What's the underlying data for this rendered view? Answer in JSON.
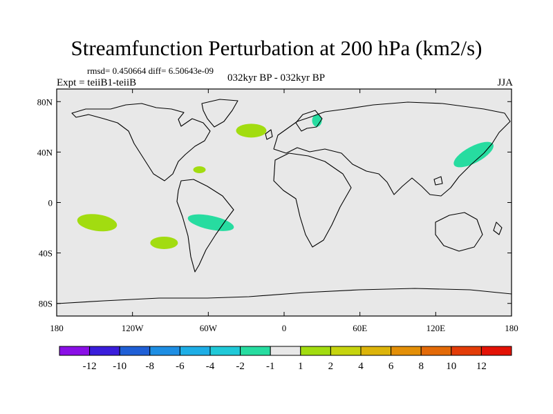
{
  "title": "Streamfunction Perturbation at 200 hPa (km2/s)",
  "stats": "rmsd= 0.450664  diff= 6.50643e-09",
  "experiment": "Expt = teiiB1-teiiB",
  "period": "032kyr BP - 032kyr BP",
  "season": "JJA",
  "map": {
    "lon_range": [
      -180,
      180
    ],
    "lat_range": [
      -90,
      90
    ],
    "lon_ticks": [
      {
        "value": -180,
        "label": "180"
      },
      {
        "value": -120,
        "label": "120W"
      },
      {
        "value": -60,
        "label": "60W"
      },
      {
        "value": 0,
        "label": "0"
      },
      {
        "value": 60,
        "label": "60E"
      },
      {
        "value": 120,
        "label": "120E"
      },
      {
        "value": 180,
        "label": "180"
      }
    ],
    "lat_ticks": [
      {
        "value": 80,
        "label": "80N"
      },
      {
        "value": 40,
        "label": "40N"
      },
      {
        "value": 0,
        "label": "0"
      },
      {
        "value": -40,
        "label": "40S"
      },
      {
        "value": -80,
        "label": "80S"
      }
    ],
    "background_color": "#e8e8e8",
    "coastline_color": "#000000"
  },
  "colorbar": {
    "colors": [
      "#8a0fe6",
      "#3a1ddb",
      "#1f5fd6",
      "#1e8ee3",
      "#1eaee6",
      "#20c9d8",
      "#27dca0",
      "#e8e8e8",
      "#a2dc10",
      "#c6d40e",
      "#dcb40a",
      "#e38f07",
      "#e36a08",
      "#e33c08",
      "#e31206"
    ],
    "labels": [
      "-12",
      "-10",
      "-8",
      "-6",
      "-4",
      "-2",
      "-1",
      "1",
      "2",
      "4",
      "6",
      "8",
      "10",
      "12"
    ]
  },
  "chart_data": {
    "type": "heatmap",
    "title": "Streamfunction Perturbation at 200 hPa (km2/s)",
    "xlim": [
      -180,
      180
    ],
    "ylim": [
      -90,
      90
    ],
    "anomaly_regions": [
      {
        "lon": -26,
        "lat": 57,
        "range": "1 to 2",
        "color": "#a2dc10"
      },
      {
        "lon": 26,
        "lat": 65,
        "range": "-2 to -1",
        "color": "#27dca0"
      },
      {
        "lon": -67,
        "lat": 26,
        "range": "1 to 2",
        "color": "#a2dc10"
      },
      {
        "lon": 150,
        "lat": 38,
        "range": "-2 to -1",
        "color": "#27dca0"
      },
      {
        "lon": -148,
        "lat": -16,
        "range": "1 to 2",
        "color": "#a2dc10"
      },
      {
        "lon": -95,
        "lat": -32,
        "range": "1 to 2",
        "color": "#a2dc10"
      },
      {
        "lon": -58,
        "lat": -16,
        "range": "-2 to -1",
        "color": "#27dca0"
      }
    ],
    "colorbar_levels": [
      -12,
      -10,
      -8,
      -6,
      -4,
      -2,
      -1,
      1,
      2,
      4,
      6,
      8,
      10,
      12
    ]
  }
}
